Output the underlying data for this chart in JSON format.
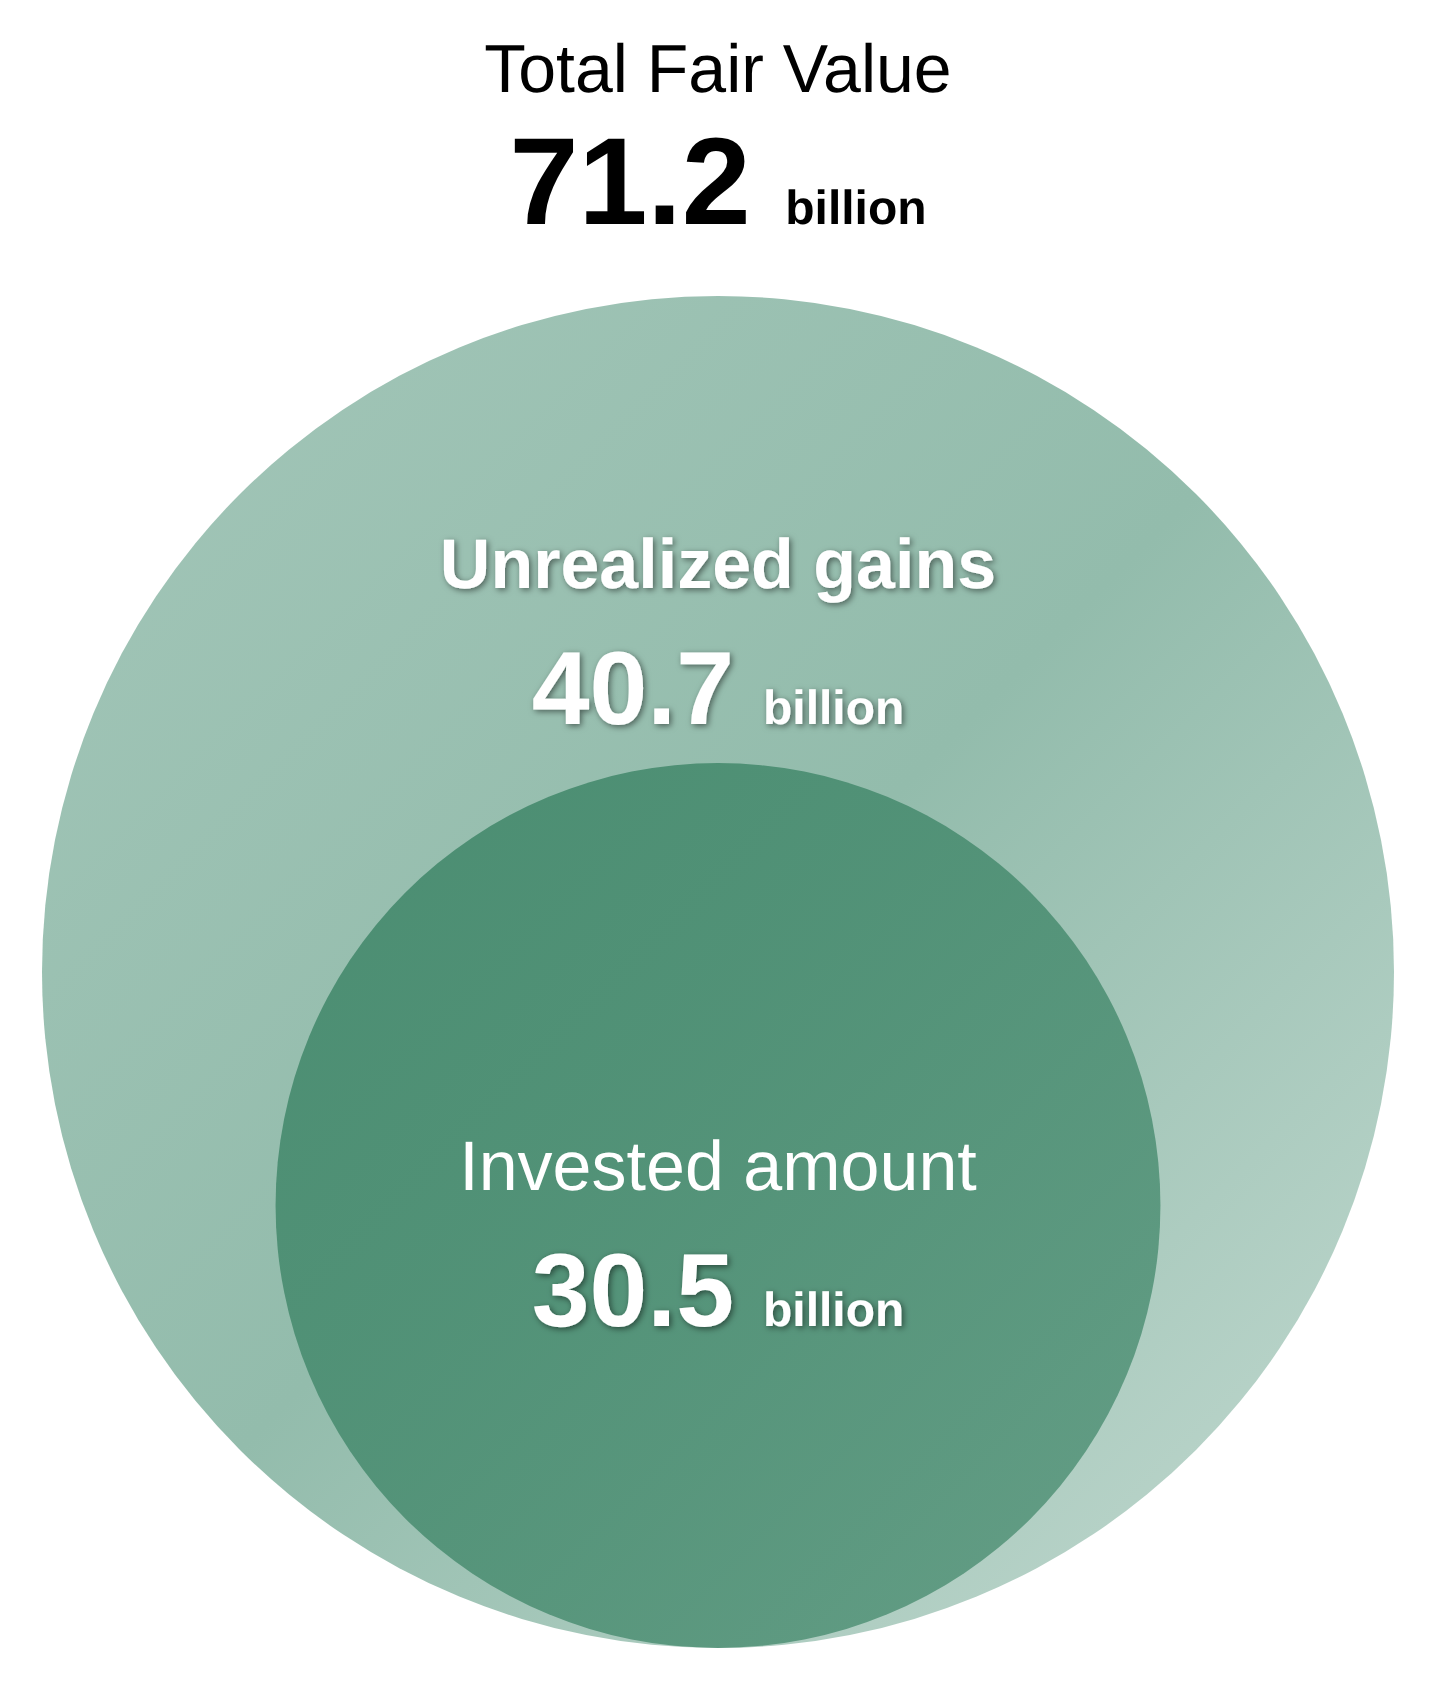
{
  "chart_data": {
    "type": "other",
    "title": "Total Fair Value",
    "subtitle": "71.2 billion",
    "categories": [
      "Unrealized gains",
      "Invested amount"
    ],
    "values": [
      40.7,
      30.5
    ],
    "value_labels": [
      "40.7 billion",
      "30.5 billion"
    ],
    "colors": [
      "#93bcac",
      "#4a8d71"
    ]
  }
}
